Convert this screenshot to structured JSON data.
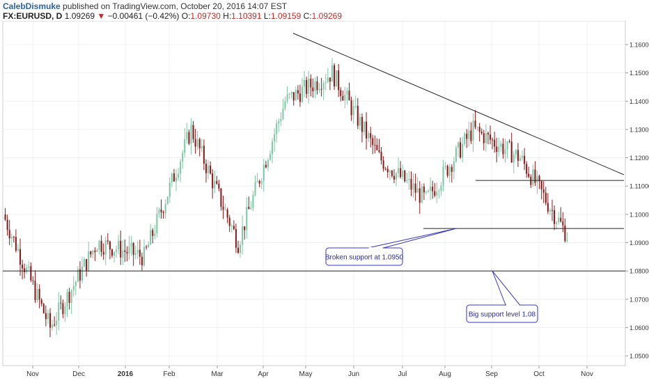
{
  "header": {
    "author": "CalebDismuke",
    "published": "published on TradingView.com, October 20, 2016 14:07 EST",
    "symbol": "FX:EURUSD, D",
    "last": "1.09269",
    "change": "−0.00461 (−0.42%)",
    "o_label": "O:",
    "o_value": "1.09730",
    "h_label": "H:",
    "h_value": "1.10391",
    "l_label": "L:",
    "l_value": "1.09159",
    "c_label": "C:",
    "c_value": "1.09269"
  },
  "colors": {
    "up": "#7fc7a6",
    "down": "#8b1a1a",
    "callout": "#3333cc",
    "callout_text": "#2b2ba8",
    "grid": "#eef0f3"
  },
  "chart_data": {
    "type": "candlestick",
    "ylim": [
      1.045,
      1.168
    ],
    "y_ticks": [
      "1.05000",
      "1.06000",
      "1.07000",
      "1.08000",
      "1.09000",
      "1.10000",
      "1.11000",
      "1.12000",
      "1.13000",
      "1.14000",
      "1.15000",
      "1.16000"
    ],
    "x_ticks": [
      "Nov",
      "Dec",
      "2016",
      "Feb",
      "Mar",
      "Apr",
      "May",
      "Jun",
      "Jul",
      "Aug",
      "Sep",
      "Oct",
      "Nov"
    ],
    "grid": true,
    "series": [
      {
        "month": "Nov",
        "from": 1.1,
        "to": 1.06
      },
      {
        "month": "Dec",
        "from": 1.06,
        "to": 1.09
      },
      {
        "month": "2016",
        "from": 1.09,
        "to": 1.085
      },
      {
        "month": "Feb",
        "from": 1.085,
        "to": 1.13
      },
      {
        "month": "Mar",
        "from": 1.13,
        "to": 1.09
      },
      {
        "month": "Apr",
        "from": 1.09,
        "to": 1.14
      },
      {
        "month": "May",
        "from": 1.14,
        "to": 1.15
      },
      {
        "month": "Jun",
        "from": 1.15,
        "to": 1.12
      },
      {
        "month": "Jul",
        "from": 1.12,
        "to": 1.105
      },
      {
        "month": "Aug",
        "from": 1.105,
        "to": 1.13
      },
      {
        "month": "Sep",
        "from": 1.13,
        "to": 1.12
      },
      {
        "month": "Oct",
        "from": 1.12,
        "to": 1.0927
      }
    ],
    "levels": [
      {
        "name": "big-support",
        "price": 1.08
      },
      {
        "name": "broken-support",
        "price": 1.095
      },
      {
        "name": "resistance",
        "price": 1.112
      }
    ],
    "trendline": {
      "from_price": 1.164,
      "to_price": 1.114
    },
    "annotations": [
      {
        "text": "Broken support at 1.0950",
        "points_to": 1.095
      },
      {
        "text": "Big support level 1.08",
        "points_to": 1.08
      }
    ]
  }
}
